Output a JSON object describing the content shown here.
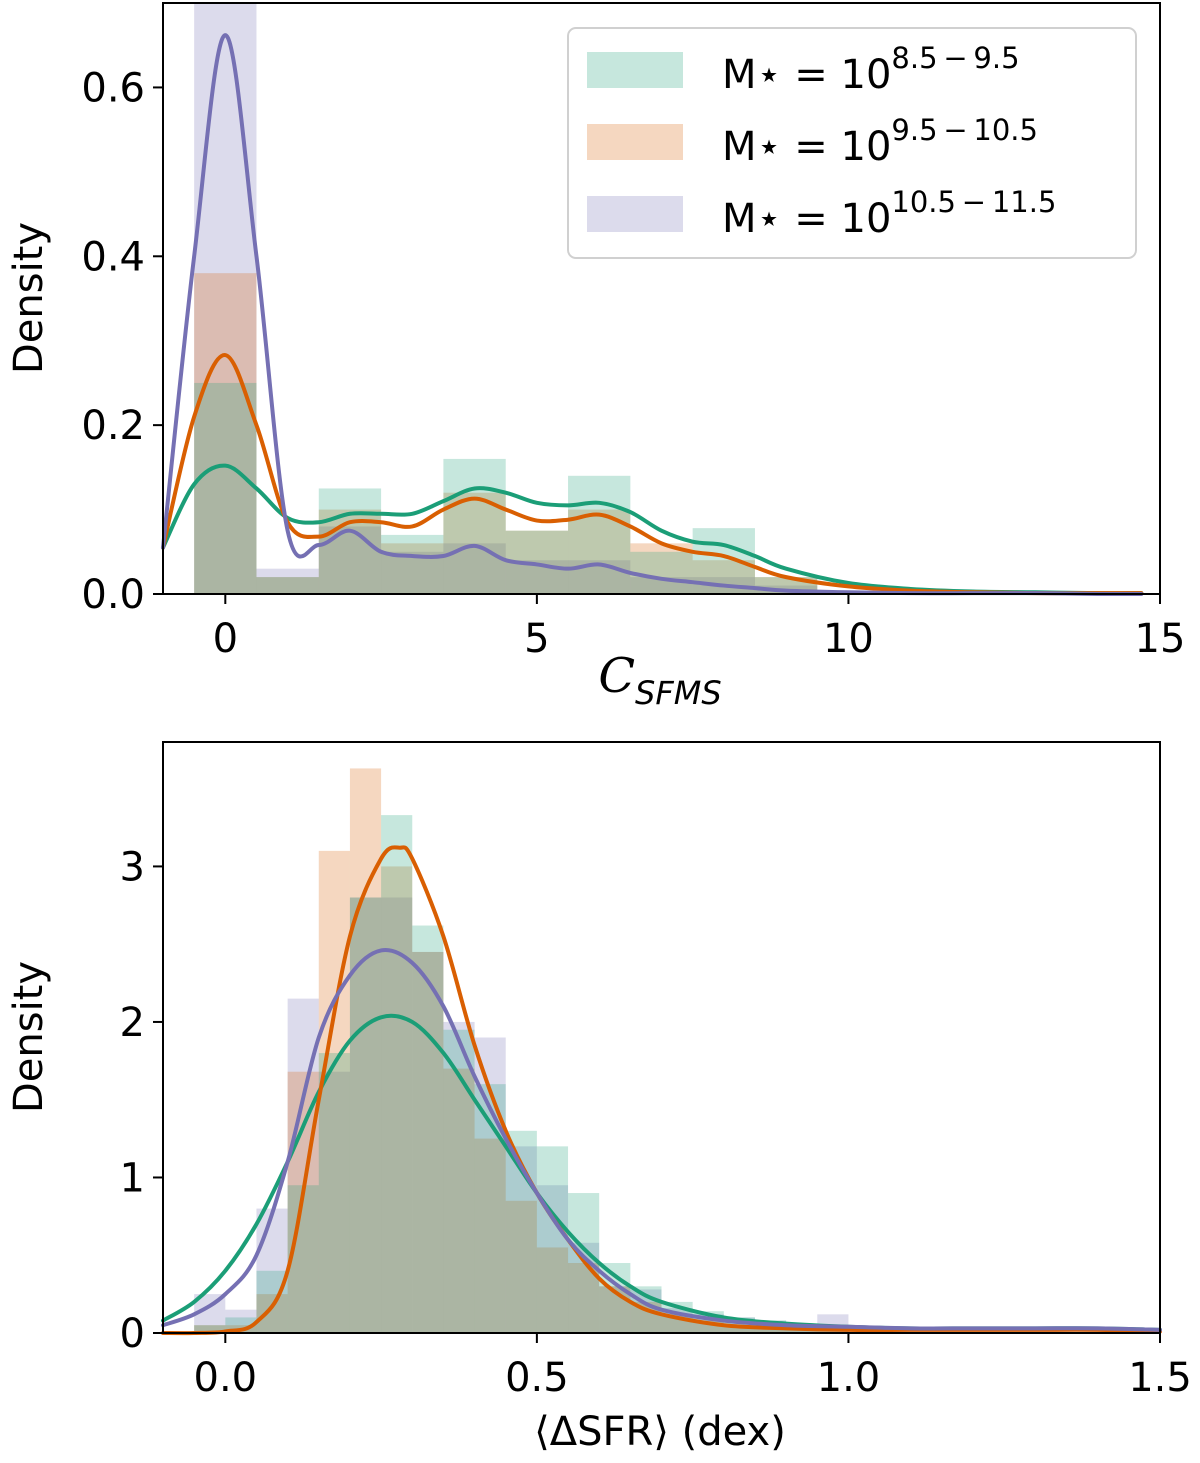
{
  "colors": {
    "green": "#1b9e77",
    "orange": "#d95f02",
    "purple": "#7570b3"
  },
  "legend": {
    "prefix": "M⋆ = 10",
    "entries": [
      {
        "exponent": "8.5 − 9.5",
        "color": "#1b9e77"
      },
      {
        "exponent": "9.5 − 10.5",
        "color": "#d95f02"
      },
      {
        "exponent": "10.5 − 11.5",
        "color": "#7570b3"
      }
    ]
  },
  "chart_data": [
    {
      "type": "area",
      "xlabel_main": "C",
      "xlabel_sub": "SFMS",
      "ylabel": "Density",
      "xlim": [
        -1,
        15
      ],
      "ylim": [
        0,
        0.7
      ],
      "xticks": [
        0,
        5,
        10,
        15
      ],
      "yticks": [
        0.0,
        0.2,
        0.4,
        0.6
      ],
      "xtick_labels": [
        "0",
        "5",
        "10",
        "15"
      ],
      "ytick_labels": [
        "0.0",
        "0.2",
        "0.4",
        "0.6"
      ],
      "hist_bins": [
        -0.5,
        0.5,
        1.5,
        2.5,
        3.5,
        4.5,
        5.5,
        6.5,
        7.5,
        8.5,
        9.5
      ],
      "hist_series": [
        {
          "color": "#7570b3",
          "values": [
            0.7,
            0.03,
            0.08,
            0.05,
            0.06,
            0.04,
            0.04,
            0.02,
            0.02,
            0.01
          ]
        },
        {
          "color": "#d95f02",
          "values": [
            0.38,
            0.02,
            0.1,
            0.06,
            0.12,
            0.075,
            0.1,
            0.06,
            0.04,
            0.02
          ]
        },
        {
          "color": "#1b9e77",
          "values": [
            0.25,
            0.02,
            0.125,
            0.07,
            0.16,
            0.075,
            0.14,
            0.05,
            0.078,
            0.02
          ]
        }
      ],
      "kde_series": [
        {
          "color": "#1b9e77",
          "x": [
            -1,
            -0.5,
            0,
            0.5,
            1,
            1.5,
            2,
            2.5,
            3,
            3.5,
            4,
            4.5,
            5,
            5.5,
            6,
            6.5,
            7,
            7.5,
            8,
            8.5,
            9,
            10,
            11,
            12,
            13,
            14,
            14.7
          ],
          "y": [
            0.055,
            0.13,
            0.152,
            0.125,
            0.09,
            0.085,
            0.095,
            0.095,
            0.095,
            0.11,
            0.125,
            0.12,
            0.108,
            0.105,
            0.108,
            0.097,
            0.075,
            0.062,
            0.058,
            0.045,
            0.03,
            0.013,
            0.006,
            0.003,
            0.002,
            0.001,
            0.001
          ]
        },
        {
          "color": "#d95f02",
          "x": [
            -1,
            -0.5,
            0,
            0.5,
            1,
            1.5,
            2,
            2.5,
            3,
            3.5,
            4,
            4.5,
            5,
            5.5,
            6,
            6.5,
            7,
            7.5,
            8,
            8.5,
            9,
            10,
            11,
            12,
            13,
            14,
            14.7
          ],
          "y": [
            0.055,
            0.21,
            0.283,
            0.2,
            0.085,
            0.068,
            0.085,
            0.085,
            0.08,
            0.1,
            0.113,
            0.1,
            0.087,
            0.088,
            0.094,
            0.08,
            0.06,
            0.05,
            0.045,
            0.032,
            0.02,
            0.009,
            0.004,
            0.002,
            0.001,
            0.001,
            0.001
          ]
        },
        {
          "color": "#7570b3",
          "x": [
            -1,
            -0.5,
            0,
            0.5,
            1,
            1.5,
            2,
            2.5,
            3,
            3.5,
            4,
            4.5,
            5,
            5.5,
            6,
            6.5,
            7,
            7.5,
            8,
            8.5,
            9,
            10,
            11,
            12,
            13,
            14,
            14.7
          ],
          "y": [
            0.055,
            0.4,
            0.662,
            0.4,
            0.075,
            0.058,
            0.075,
            0.05,
            0.045,
            0.045,
            0.057,
            0.04,
            0.035,
            0.03,
            0.035,
            0.025,
            0.018,
            0.014,
            0.01,
            0.007,
            0.004,
            0.002,
            0.001,
            0.001,
            0.001,
            0.0,
            0.0
          ]
        }
      ]
    },
    {
      "type": "area",
      "xlabel": "⟨ΔSFR⟩ (dex)",
      "ylabel": "Density",
      "xlim": [
        -0.1,
        1.5
      ],
      "ylim": [
        0,
        3.8
      ],
      "xticks": [
        0.0,
        0.5,
        1.0,
        1.5
      ],
      "yticks": [
        0,
        1,
        2,
        3
      ],
      "xtick_labels": [
        "0.0",
        "0.5",
        "1.0",
        "1.5"
      ],
      "ytick_labels": [
        "0",
        "1",
        "2",
        "3"
      ],
      "hist_bins": [
        -0.05,
        0.0,
        0.05,
        0.1,
        0.15,
        0.2,
        0.25,
        0.3,
        0.35,
        0.4,
        0.45,
        0.5,
        0.55,
        0.6,
        0.65,
        0.7,
        0.75,
        0.8,
        0.85,
        0.9,
        0.95,
        1.0
      ],
      "hist_series": [
        {
          "color": "#7570b3",
          "values": [
            0.25,
            0.15,
            0.8,
            2.15,
            1.68,
            2.8,
            2.8,
            2.45,
            2.0,
            1.9,
            1.2,
            0.95,
            0.58,
            0.3,
            0.28,
            0.16,
            0.12,
            0.1,
            0.08,
            0.06,
            0.12
          ]
        },
        {
          "color": "#d95f02",
          "values": [
            0.05,
            0.05,
            0.25,
            1.68,
            3.1,
            3.63,
            3.0,
            2.45,
            1.7,
            1.25,
            0.85,
            0.55,
            0.45,
            0.3,
            0.2,
            0.12,
            0.08,
            0.05,
            0.04,
            0.03,
            0.02
          ]
        },
        {
          "color": "#1b9e77",
          "values": [
            0.05,
            0.1,
            0.4,
            0.95,
            1.8,
            2.8,
            3.33,
            2.62,
            1.95,
            1.6,
            1.3,
            1.2,
            0.9,
            0.45,
            0.3,
            0.2,
            0.14,
            0.1,
            0.08,
            0.05,
            0.03
          ]
        }
      ],
      "kde_series": [
        {
          "color": "#1b9e77",
          "x": [
            -0.1,
            -0.05,
            0.0,
            0.05,
            0.1,
            0.15,
            0.2,
            0.25,
            0.3,
            0.35,
            0.4,
            0.45,
            0.5,
            0.55,
            0.6,
            0.65,
            0.7,
            0.8,
            0.9,
            1.0,
            1.1,
            1.2,
            1.3,
            1.4,
            1.5
          ],
          "y": [
            0.08,
            0.2,
            0.4,
            0.7,
            1.1,
            1.55,
            1.88,
            2.03,
            2.0,
            1.8,
            1.5,
            1.2,
            0.9,
            0.65,
            0.45,
            0.3,
            0.2,
            0.1,
            0.06,
            0.04,
            0.03,
            0.03,
            0.03,
            0.03,
            0.02
          ]
        },
        {
          "color": "#d95f02",
          "x": [
            -0.1,
            -0.05,
            0.0,
            0.05,
            0.1,
            0.15,
            0.2,
            0.25,
            0.28,
            0.3,
            0.35,
            0.4,
            0.45,
            0.5,
            0.55,
            0.6,
            0.65,
            0.7,
            0.8,
            0.9,
            1.0,
            1.1,
            1.2,
            1.3,
            1.4,
            1.5
          ],
          "y": [
            0.0,
            0.0,
            0.01,
            0.07,
            0.4,
            1.5,
            2.55,
            3.05,
            3.12,
            3.05,
            2.55,
            1.85,
            1.3,
            0.9,
            0.6,
            0.35,
            0.2,
            0.12,
            0.05,
            0.03,
            0.02,
            0.02,
            0.02,
            0.02,
            0.02,
            0.01
          ]
        },
        {
          "color": "#7570b3",
          "x": [
            -0.1,
            -0.05,
            0.0,
            0.05,
            0.1,
            0.15,
            0.2,
            0.25,
            0.3,
            0.35,
            0.4,
            0.45,
            0.5,
            0.55,
            0.6,
            0.65,
            0.7,
            0.8,
            0.9,
            1.0,
            1.1,
            1.2,
            1.3,
            1.4,
            1.5
          ],
          "y": [
            0.05,
            0.12,
            0.25,
            0.5,
            1.1,
            1.9,
            2.3,
            2.46,
            2.38,
            2.1,
            1.65,
            1.25,
            0.9,
            0.6,
            0.4,
            0.25,
            0.15,
            0.08,
            0.05,
            0.04,
            0.03,
            0.03,
            0.03,
            0.03,
            0.02
          ]
        }
      ]
    }
  ]
}
